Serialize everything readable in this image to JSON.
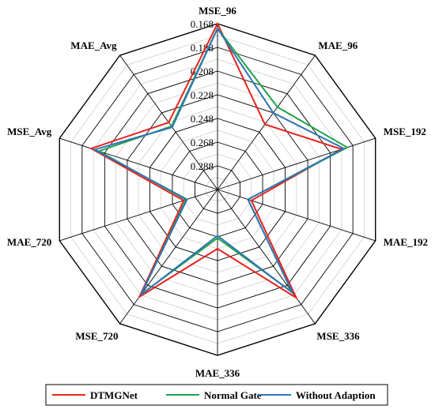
{
  "chart_data": {
    "type": "radar",
    "axes": [
      "MSE_96",
      "MAE_96",
      "MSE_192",
      "MAE_192",
      "MSE_336",
      "MAE_336",
      "MSE_720",
      "MAE_720",
      "MSE_Avg",
      "MAE_Avg"
    ],
    "radial_ticks": [
      "0.168",
      "0.188",
      "0.208",
      "0.228",
      "0.248",
      "0.268",
      "0.288"
    ],
    "radial_range": [
      0.308,
      0.168
    ],
    "reversed_scale": true,
    "grid": true,
    "legend_position": "bottom",
    "series": [
      {
        "name": "DTMGNet",
        "color": "#e8221c",
        "values": [
          0.168,
          0.24,
          0.198,
          0.278,
          0.195,
          0.258,
          0.196,
          0.278,
          0.196,
          0.238
        ]
      },
      {
        "name": "Normal Gate",
        "color": "#22a34a",
        "values": [
          0.172,
          0.222,
          0.193,
          0.281,
          0.201,
          0.267,
          0.199,
          0.28,
          0.203,
          0.242
        ]
      },
      {
        "name": "Without Adaption",
        "color": "#2e74b5",
        "values": [
          0.172,
          0.228,
          0.196,
          0.281,
          0.2,
          0.269,
          0.198,
          0.281,
          0.199,
          0.243
        ]
      }
    ]
  }
}
